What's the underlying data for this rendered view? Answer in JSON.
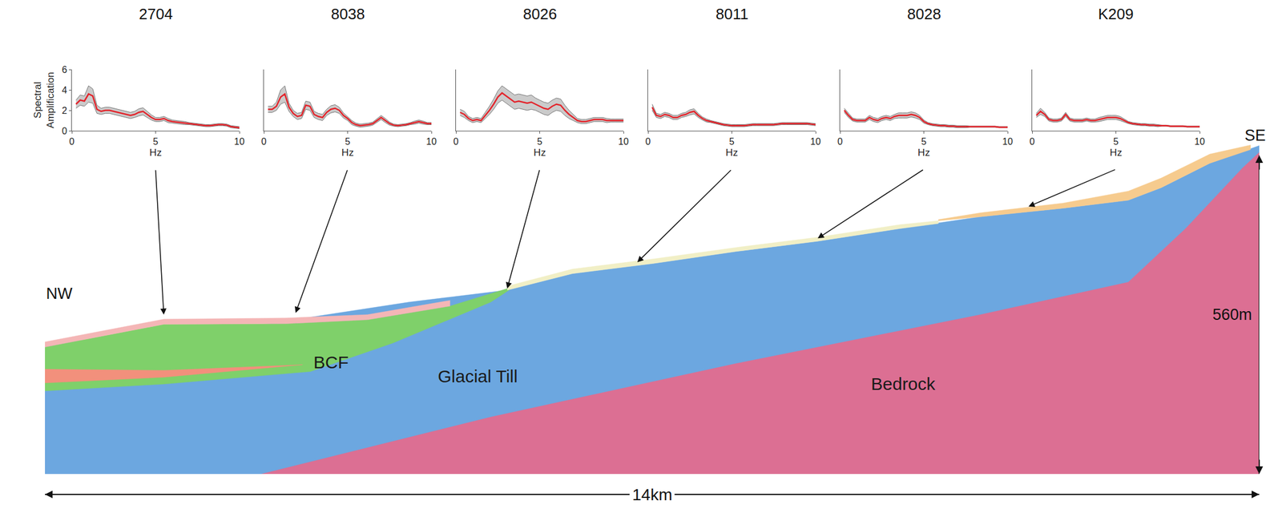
{
  "chart_data": [
    {
      "type": "line",
      "title": "2704",
      "color": "#e3242b",
      "xlabel": "Hz",
      "ylabel": "Spectral Amplification",
      "xlim": [
        0,
        10
      ],
      "xticks": [
        0,
        5,
        10
      ],
      "ylim": [
        0,
        6
      ],
      "yticks": [
        0,
        2,
        4,
        6
      ],
      "location_km": 1.37,
      "surface_m": 280,
      "x": [
        0.25,
        0.5,
        0.75,
        1,
        1.25,
        1.5,
        1.75,
        2,
        2.25,
        2.5,
        2.75,
        3,
        3.25,
        3.5,
        3.75,
        4,
        4.25,
        4.5,
        4.75,
        5,
        5.25,
        5.5,
        5.75,
        6,
        6.25,
        6.5,
        6.75,
        7,
        7.25,
        7.5,
        7.75,
        8,
        8.25,
        8.5,
        8.75,
        9,
        9.25,
        9.5,
        9.75,
        10
      ],
      "values": [
        2.6,
        3.0,
        2.9,
        3.6,
        3.4,
        2.1,
        1.9,
        2.0,
        2.0,
        1.9,
        1.8,
        1.7,
        1.6,
        1.5,
        1.6,
        1.8,
        1.9,
        1.6,
        1.3,
        1.1,
        1.1,
        1.2,
        1.0,
        0.9,
        0.85,
        0.8,
        0.75,
        0.7,
        0.65,
        0.6,
        0.55,
        0.5,
        0.5,
        0.55,
        0.6,
        0.6,
        0.55,
        0.4,
        0.35,
        0.3
      ],
      "band": [
        0.4,
        0.5,
        0.5,
        0.8,
        0.7,
        0.4,
        0.3,
        0.3,
        0.3,
        0.3,
        0.3,
        0.3,
        0.3,
        0.3,
        0.3,
        0.35,
        0.35,
        0.3,
        0.25,
        0.2,
        0.2,
        0.2,
        0.2,
        0.15,
        0.15,
        0.15,
        0.15,
        0.1,
        0.1,
        0.1,
        0.1,
        0.1,
        0.1,
        0.1,
        0.1,
        0.1,
        0.1,
        0.1,
        0.1,
        0.1
      ]
    },
    {
      "type": "line",
      "title": "8038",
      "color": "#e3242b",
      "xlabel": "Hz",
      "xlim": [
        0,
        10
      ],
      "xticks": [
        0,
        5,
        10
      ],
      "ylim": [
        0,
        6
      ],
      "tick_labels": "x",
      "location_km": 2.89,
      "surface_m": 283,
      "x": [
        0.25,
        0.5,
        0.75,
        1,
        1.25,
        1.5,
        1.75,
        2,
        2.25,
        2.5,
        2.75,
        3,
        3.25,
        3.5,
        3.75,
        4,
        4.25,
        4.5,
        4.75,
        5,
        5.25,
        5.5,
        5.75,
        6,
        6.25,
        6.5,
        6.75,
        7,
        7.25,
        7.5,
        7.75,
        8,
        8.25,
        8.5,
        8.75,
        9,
        9.25,
        9.5,
        9.75,
        10
      ],
      "values": [
        2.1,
        2.1,
        2.4,
        3.3,
        3.6,
        2.3,
        1.7,
        1.4,
        1.5,
        2.5,
        2.4,
        1.6,
        1.4,
        1.3,
        1.8,
        2.1,
        2.2,
        2.0,
        1.5,
        1.2,
        0.8,
        0.6,
        0.5,
        0.55,
        0.6,
        0.7,
        1.0,
        1.3,
        1.0,
        0.7,
        0.55,
        0.5,
        0.55,
        0.6,
        0.7,
        0.8,
        0.9,
        0.8,
        0.7,
        0.7
      ],
      "band": [
        0.3,
        0.3,
        0.4,
        0.7,
        0.8,
        0.4,
        0.3,
        0.3,
        0.3,
        0.4,
        0.4,
        0.3,
        0.3,
        0.3,
        0.3,
        0.35,
        0.35,
        0.3,
        0.25,
        0.2,
        0.2,
        0.15,
        0.15,
        0.15,
        0.15,
        0.15,
        0.2,
        0.2,
        0.2,
        0.15,
        0.1,
        0.1,
        0.1,
        0.1,
        0.1,
        0.15,
        0.15,
        0.15,
        0.1,
        0.1
      ]
    },
    {
      "type": "line",
      "title": "8026",
      "color": "#e3242b",
      "xlabel": "Hz",
      "xlim": [
        0,
        10
      ],
      "xticks": [
        0,
        5,
        10
      ],
      "ylim": [
        0,
        6
      ],
      "tick_labels": "x",
      "location_km": 5.33,
      "surface_m": 326,
      "x": [
        0.25,
        0.5,
        0.75,
        1,
        1.25,
        1.5,
        1.75,
        2,
        2.25,
        2.5,
        2.75,
        3,
        3.25,
        3.5,
        3.75,
        4,
        4.25,
        4.5,
        4.75,
        5,
        5.25,
        5.5,
        5.75,
        6,
        6.25,
        6.5,
        6.75,
        7,
        7.25,
        7.5,
        7.75,
        8,
        8.25,
        8.5,
        8.75,
        9,
        9.25,
        9.5,
        9.75,
        10
      ],
      "values": [
        1.8,
        1.6,
        1.2,
        1.0,
        1.1,
        1.0,
        1.5,
        2.0,
        2.6,
        3.3,
        3.7,
        3.4,
        3.1,
        2.8,
        2.9,
        2.8,
        2.7,
        2.8,
        2.6,
        2.4,
        2.2,
        2.1,
        2.4,
        2.6,
        2.5,
        2.0,
        1.6,
        1.3,
        1.0,
        0.9,
        0.9,
        1.0,
        1.1,
        1.1,
        1.1,
        1.0,
        1.0,
        1.0,
        1.0,
        1.0
      ],
      "band": [
        0.3,
        0.3,
        0.2,
        0.2,
        0.2,
        0.2,
        0.3,
        0.4,
        0.5,
        0.6,
        0.7,
        0.7,
        0.7,
        0.7,
        0.7,
        0.7,
        0.7,
        0.7,
        0.6,
        0.6,
        0.6,
        0.6,
        0.6,
        0.6,
        0.6,
        0.5,
        0.4,
        0.3,
        0.2,
        0.2,
        0.2,
        0.2,
        0.2,
        0.2,
        0.2,
        0.2,
        0.15,
        0.15,
        0.15,
        0.15
      ]
    },
    {
      "type": "line",
      "title": "8011",
      "color": "#e3242b",
      "xlabel": "Hz",
      "xlim": [
        0,
        10
      ],
      "xticks": [
        0,
        5,
        10
      ],
      "ylim": [
        0,
        6
      ],
      "tick_labels": "x",
      "location_km": 6.83,
      "surface_m": 372,
      "x": [
        0.25,
        0.5,
        0.75,
        1,
        1.25,
        1.5,
        1.75,
        2,
        2.25,
        2.5,
        2.75,
        3,
        3.25,
        3.5,
        3.75,
        4,
        4.25,
        4.5,
        4.75,
        5,
        5.25,
        5.5,
        5.75,
        6,
        6.25,
        6.5,
        6.75,
        7,
        7.25,
        7.5,
        7.75,
        8,
        8.25,
        8.5,
        8.75,
        9,
        9.25,
        9.5,
        9.75,
        10
      ],
      "values": [
        2.3,
        1.5,
        1.4,
        1.6,
        1.5,
        1.3,
        1.3,
        1.5,
        1.6,
        1.8,
        1.9,
        1.5,
        1.2,
        1.0,
        0.9,
        0.8,
        0.7,
        0.6,
        0.55,
        0.5,
        0.5,
        0.5,
        0.5,
        0.55,
        0.6,
        0.6,
        0.6,
        0.6,
        0.6,
        0.6,
        0.65,
        0.7,
        0.7,
        0.7,
        0.7,
        0.7,
        0.7,
        0.7,
        0.65,
        0.6
      ],
      "band": [
        0.3,
        0.2,
        0.2,
        0.2,
        0.2,
        0.2,
        0.2,
        0.2,
        0.2,
        0.25,
        0.25,
        0.2,
        0.15,
        0.15,
        0.1,
        0.1,
        0.1,
        0.1,
        0.1,
        0.1,
        0.1,
        0.1,
        0.1,
        0.1,
        0.1,
        0.1,
        0.1,
        0.1,
        0.1,
        0.1,
        0.1,
        0.1,
        0.1,
        0.1,
        0.1,
        0.1,
        0.1,
        0.1,
        0.1,
        0.1
      ]
    },
    {
      "type": "line",
      "title": "8028",
      "color": "#e3242b",
      "xlabel": "Hz",
      "xlim": [
        0,
        10
      ],
      "xticks": [
        0,
        5,
        10
      ],
      "ylim": [
        0,
        6
      ],
      "tick_labels": "x",
      "location_km": 8.91,
      "surface_m": 414,
      "x": [
        0.25,
        0.5,
        0.75,
        1,
        1.25,
        1.5,
        1.75,
        2,
        2.25,
        2.5,
        2.75,
        3,
        3.25,
        3.5,
        3.75,
        4,
        4.25,
        4.5,
        4.75,
        5,
        5.25,
        5.5,
        5.75,
        6,
        6.25,
        6.5,
        6.75,
        7,
        7.25,
        7.5,
        7.75,
        8,
        8.25,
        8.5,
        8.75,
        9,
        9.25,
        9.5,
        9.75,
        10
      ],
      "values": [
        2.0,
        1.5,
        1.1,
        1.0,
        1.0,
        1.0,
        1.3,
        1.1,
        1.0,
        1.2,
        1.3,
        1.2,
        1.4,
        1.5,
        1.5,
        1.5,
        1.6,
        1.5,
        1.3,
        0.9,
        0.7,
        0.6,
        0.55,
        0.5,
        0.5,
        0.45,
        0.45,
        0.4,
        0.4,
        0.4,
        0.4,
        0.4,
        0.4,
        0.4,
        0.4,
        0.4,
        0.4,
        0.35,
        0.35,
        0.35
      ],
      "band": [
        0.2,
        0.2,
        0.15,
        0.15,
        0.15,
        0.15,
        0.2,
        0.2,
        0.2,
        0.2,
        0.2,
        0.2,
        0.2,
        0.25,
        0.25,
        0.25,
        0.25,
        0.25,
        0.2,
        0.15,
        0.1,
        0.1,
        0.1,
        0.1,
        0.1,
        0.1,
        0.1,
        0.1,
        0.1,
        0.1,
        0.05,
        0.05,
        0.05,
        0.05,
        0.05,
        0.05,
        0.05,
        0.05,
        0.05,
        0.05
      ]
    },
    {
      "type": "line",
      "title": "K209",
      "color": "#e3242b",
      "xlabel": "Hz",
      "xlim": [
        0,
        10
      ],
      "xticks": [
        0,
        5,
        10
      ],
      "ylim": [
        0,
        6
      ],
      "tick_labels": "x",
      "location_km": 11.34,
      "surface_m": 470,
      "x": [
        0.25,
        0.5,
        0.75,
        1,
        1.25,
        1.5,
        1.75,
        2,
        2.25,
        2.5,
        2.75,
        3,
        3.25,
        3.5,
        3.75,
        4,
        4.25,
        4.5,
        4.75,
        5,
        5.25,
        5.5,
        5.75,
        6,
        6.25,
        6.5,
        6.75,
        7,
        7.25,
        7.5,
        7.75,
        8,
        8.25,
        8.5,
        8.75,
        9,
        9.25,
        9.5,
        9.75,
        10
      ],
      "values": [
        1.5,
        1.9,
        1.6,
        1.1,
        1.0,
        1.0,
        1.1,
        1.6,
        1.1,
        1.0,
        1.0,
        1.0,
        1.1,
        1.0,
        1.0,
        1.1,
        1.2,
        1.3,
        1.3,
        1.3,
        1.2,
        1.0,
        0.8,
        0.7,
        0.65,
        0.6,
        0.6,
        0.55,
        0.55,
        0.5,
        0.5,
        0.5,
        0.45,
        0.45,
        0.45,
        0.45,
        0.4,
        0.4,
        0.4,
        0.4
      ],
      "band": [
        0.2,
        0.3,
        0.2,
        0.15,
        0.15,
        0.15,
        0.15,
        0.2,
        0.15,
        0.15,
        0.15,
        0.15,
        0.15,
        0.15,
        0.15,
        0.2,
        0.2,
        0.2,
        0.2,
        0.2,
        0.2,
        0.15,
        0.1,
        0.1,
        0.1,
        0.1,
        0.1,
        0.1,
        0.1,
        0.1,
        0.05,
        0.05,
        0.05,
        0.05,
        0.05,
        0.05,
        0.05,
        0.05,
        0.05,
        0.05
      ]
    }
  ],
  "cross_section": {
    "xlim": [
      0,
      14
    ],
    "ylim": [
      0,
      580
    ],
    "width_km": 14,
    "height_m": 560,
    "width_label": "14km",
    "height_label": "560m",
    "left_label": "NW",
    "right_label": "SE",
    "layers": [
      {
        "label": "Glacial Till",
        "color": "#6ca7e0",
        "x": [
          0,
          14,
          14,
          13.43,
          12.87,
          12.49,
          11.74,
          10.79,
          9.85,
          8.91,
          7.97,
          7.02,
          6.08,
          5.33,
          4.2,
          2.31,
          0
        ],
        "y": [
          0,
          0,
          577,
          546,
          503,
          481,
          467,
          452,
          431,
          409,
          391,
          370,
          352,
          323,
          302,
          258,
          230
        ]
      },
      {
        "label": "Bedrock",
        "color": "#dc6f93",
        "x": [
          2.5,
          5.14,
          7.97,
          10.79,
          12.49,
          13.15,
          13.81,
          14,
          14
        ],
        "y": [
          0,
          100,
          194,
          280,
          337,
          431,
          538,
          565,
          0
        ]
      },
      {
        "label": "BCF",
        "color": "#7fd06a",
        "x": [
          0,
          1.37,
          2.78,
          3.72,
          4.67,
          5.42,
          5.14,
          4.01,
          3.06,
          1.37,
          0
        ],
        "y": [
          223,
          263,
          264,
          271,
          295,
          330,
          302,
          230,
          180,
          158,
          146
        ]
      },
      {
        "color": "#f2907c",
        "x": [
          0,
          1.37,
          2.97,
          1.37,
          0
        ],
        "y": [
          184,
          182,
          192,
          170,
          160
        ]
      },
      {
        "color": "#f4b6b6",
        "x": [
          0,
          1.37,
          2.78,
          3.72,
          4.67,
          4.67,
          3.72,
          2.78,
          1.37,
          0
        ],
        "y": [
          223,
          263,
          264,
          271,
          295,
          305,
          280,
          274,
          272,
          232
        ]
      },
      {
        "color": "#f1efc6",
        "x": [
          5.33,
          6.08,
          7.02,
          7.97,
          8.91,
          9.85,
          10.3,
          10.3,
          9.85,
          8.91,
          7.97,
          7.02,
          6.08,
          5.33
        ],
        "y": [
          330,
          360,
          378,
          398,
          416,
          438,
          445,
          440,
          431,
          409,
          391,
          370,
          352,
          323
        ]
      },
      {
        "color": "#f6cb8e",
        "x": [
          10.3,
          10.79,
          11.74,
          12.49,
          12.87,
          13.43,
          13.9,
          13.9,
          13.43,
          12.87,
          12.49,
          11.74,
          10.79,
          10.3
        ],
        "y": [
          447,
          459,
          476,
          497,
          520,
          562,
          578,
          570,
          546,
          503,
          481,
          467,
          452,
          445
        ]
      }
    ]
  }
}
